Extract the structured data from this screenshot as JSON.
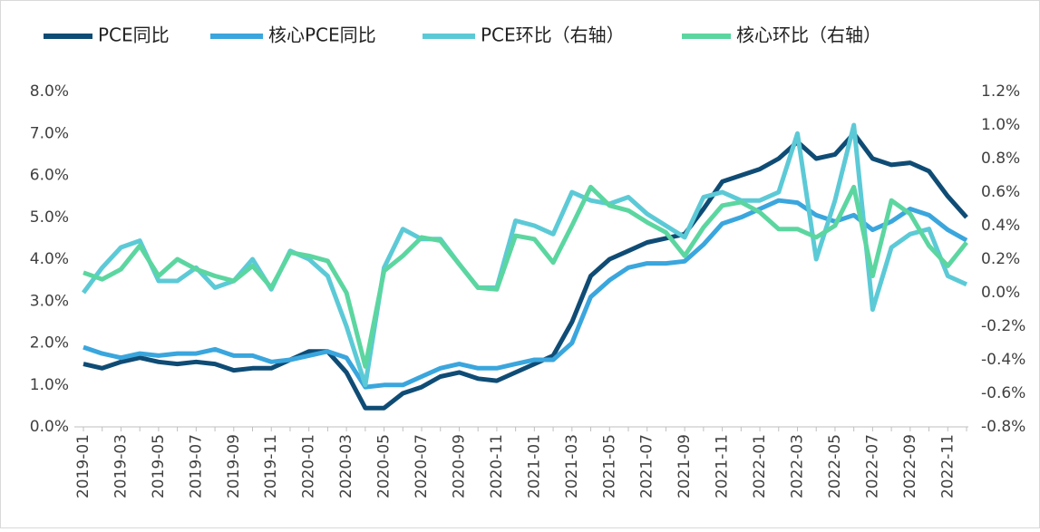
{
  "chart_data": {
    "type": "line",
    "categories": [
      "2019-01",
      null,
      "2019-03",
      null,
      "2019-05",
      null,
      "2019-07",
      null,
      "2019-09",
      null,
      "2019-11",
      null,
      "2020-01",
      null,
      "2020-03",
      null,
      "2020-05",
      null,
      "2020-07",
      null,
      "2020-09",
      null,
      "2020-11",
      null,
      "2021-01",
      null,
      "2021-03",
      null,
      "2021-05",
      null,
      "2021-07",
      null,
      "2021-09",
      null,
      "2021-11",
      null,
      "2022-01",
      null,
      "2022-03",
      null,
      "2022-05",
      null,
      "2022-07",
      null,
      "2022-09",
      null,
      "2022-11",
      null
    ],
    "series": [
      {
        "name": "PCE同比",
        "color": "#0f4c75",
        "values": [
          1.5,
          1.4,
          1.55,
          1.65,
          1.55,
          1.5,
          1.55,
          1.5,
          1.35,
          1.4,
          1.4,
          1.6,
          1.8,
          1.8,
          1.3,
          0.45,
          0.45,
          0.8,
          0.95,
          1.2,
          1.3,
          1.15,
          1.1,
          1.3,
          1.5,
          1.7,
          2.5,
          3.6,
          4.0,
          4.2,
          4.4,
          4.5,
          4.6,
          5.2,
          5.85,
          6.0,
          6.15,
          6.4,
          6.8,
          6.4,
          6.5,
          7.0,
          6.4,
          6.25,
          6.3,
          6.1,
          5.5,
          5.0
        ]
      },
      {
        "name": "核心PCE同比",
        "color": "#3aa6dd",
        "values": [
          1.9,
          1.75,
          1.65,
          1.75,
          1.7,
          1.75,
          1.75,
          1.85,
          1.7,
          1.7,
          1.55,
          1.6,
          1.7,
          1.8,
          1.65,
          0.95,
          1.0,
          1.0,
          1.2,
          1.4,
          1.5,
          1.4,
          1.4,
          1.5,
          1.6,
          1.6,
          2.0,
          3.1,
          3.5,
          3.8,
          3.9,
          3.9,
          3.95,
          4.35,
          4.85,
          5.0,
          5.2,
          5.4,
          5.35,
          5.05,
          4.9,
          5.05,
          4.7,
          4.9,
          5.2,
          5.05,
          4.7,
          4.45
        ]
      },
      {
        "name": "PCE环比（右轴）",
        "color": "#5ccad6",
        "axis": "y2",
        "values": [
          0.0,
          0.15,
          0.27,
          0.31,
          0.07,
          0.07,
          0.15,
          0.03,
          0.07,
          0.2,
          0.02,
          0.25,
          0.2,
          0.1,
          -0.2,
          -0.55,
          0.15,
          0.38,
          0.32,
          0.32,
          0.17,
          0.03,
          0.03,
          0.43,
          0.4,
          0.35,
          0.6,
          0.55,
          0.53,
          0.57,
          0.47,
          0.4,
          0.33,
          0.57,
          0.6,
          0.55,
          0.55,
          0.6,
          0.95,
          0.2,
          0.55,
          1.0,
          -0.1,
          0.27,
          0.35,
          0.38,
          0.1,
          0.05
        ]
      },
      {
        "name": "核心环比（右轴）",
        "color": "#5cd6a0",
        "axis": "y2",
        "values": [
          0.12,
          0.08,
          0.14,
          0.28,
          0.1,
          0.2,
          0.14,
          0.1,
          0.07,
          0.16,
          0.03,
          0.24,
          0.22,
          0.19,
          0.0,
          -0.44,
          0.13,
          0.22,
          0.33,
          0.31,
          0.17,
          0.03,
          0.02,
          0.34,
          0.32,
          0.18,
          0.4,
          0.63,
          0.52,
          0.49,
          0.42,
          0.36,
          0.22,
          0.39,
          0.52,
          0.54,
          0.48,
          0.38,
          0.38,
          0.33,
          0.4,
          0.63,
          0.1,
          0.55,
          0.47,
          0.28,
          0.16,
          0.3
        ]
      }
    ],
    "ylim": [
      0,
      8
    ],
    "yticks": [
      {
        "value": 0,
        "label": "0.0%"
      },
      {
        "value": 1,
        "label": "1.0%"
      },
      {
        "value": 2,
        "label": "2.0%"
      },
      {
        "value": 3,
        "label": "3.0%"
      },
      {
        "value": 4,
        "label": "4.0%"
      },
      {
        "value": 5,
        "label": "5.0%"
      },
      {
        "value": 6,
        "label": "6.0%"
      },
      {
        "value": 7,
        "label": "7.0%"
      },
      {
        "value": 8,
        "label": "8.0%"
      }
    ],
    "y2lim": [
      -0.8,
      1.2
    ],
    "y2ticks": [
      {
        "value": -0.8,
        "label": "-0.8%"
      },
      {
        "value": -0.6,
        "label": "-0.6%"
      },
      {
        "value": -0.4,
        "label": "-0.4%"
      },
      {
        "value": -0.2,
        "label": "-0.2%"
      },
      {
        "value": 0,
        "label": "0.0%"
      },
      {
        "value": 0.2,
        "label": "0.2%"
      },
      {
        "value": 0.4,
        "label": "0.4%"
      },
      {
        "value": 0.6,
        "label": "0.6%"
      },
      {
        "value": 0.8,
        "label": "0.8%"
      },
      {
        "value": 1.0,
        "label": "1.0%"
      },
      {
        "value": 1.2,
        "label": "1.2%"
      }
    ],
    "legend": "top"
  }
}
